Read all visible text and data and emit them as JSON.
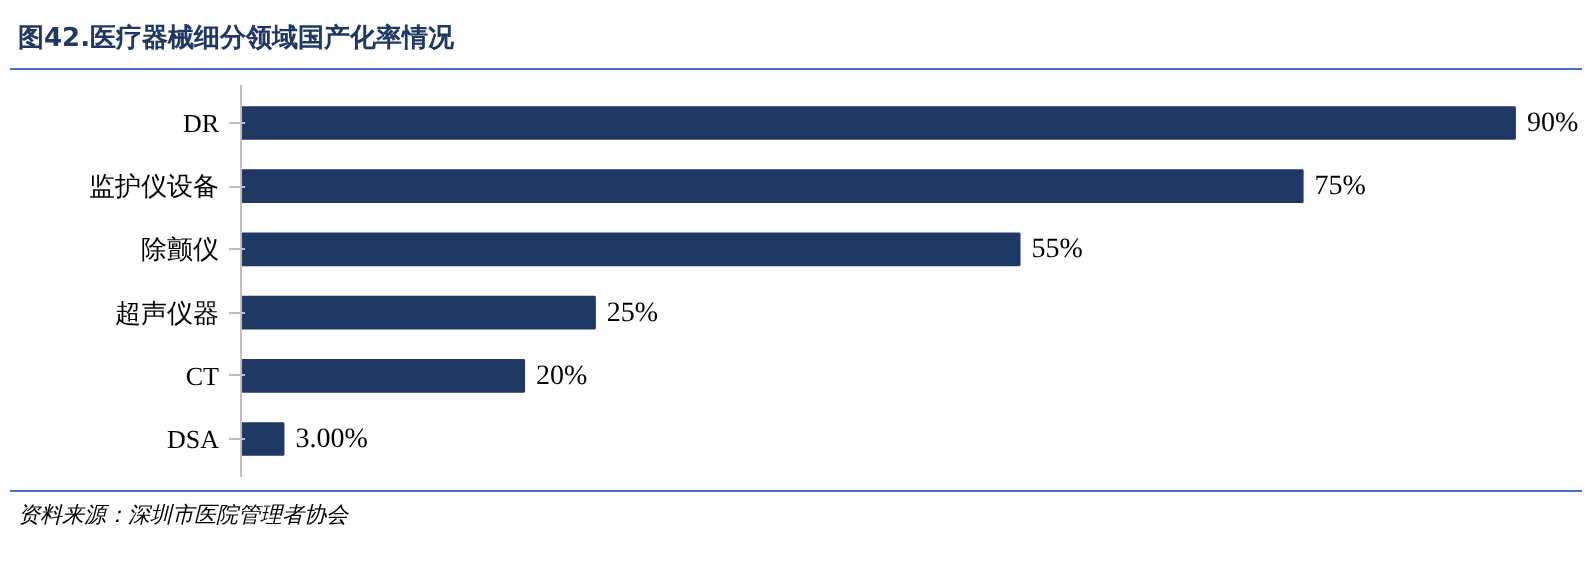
{
  "chart_data": {
    "type": "bar",
    "orientation": "horizontal",
    "title": "图42.医疗器械细分领域国产化率情况",
    "categories": [
      "DR",
      "监护仪设备",
      "除颤仪",
      "超声仪器",
      "CT",
      "DSA"
    ],
    "values": [
      90,
      75,
      55,
      25,
      20,
      3
    ],
    "value_labels": [
      "90%",
      "75%",
      "55%",
      "25%",
      "20%",
      "3.00%"
    ],
    "color": "#203864",
    "grid": false,
    "annotations": [
      "资料来源：深圳市医院管理者协会"
    ]
  }
}
